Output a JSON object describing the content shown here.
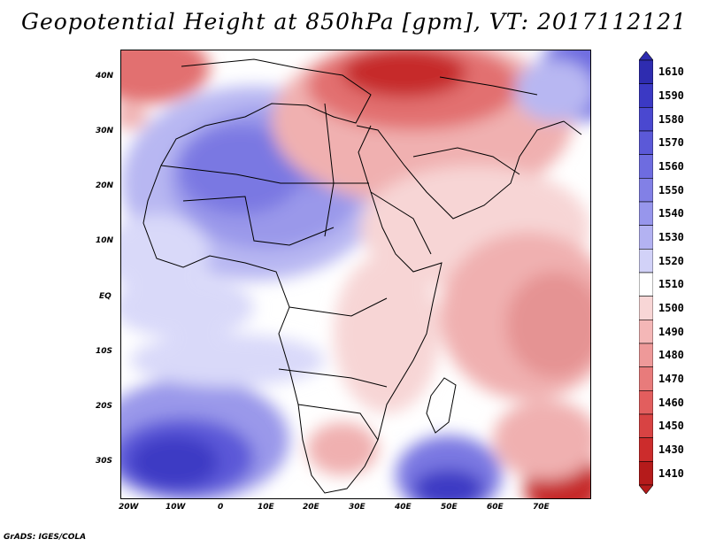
{
  "title": "Geopotential Height at 850hPa [gpm], VT: 2017112121",
  "credit": "GrADS: IGES/COLA",
  "lat_labels": [
    "40N",
    "30N",
    "20N",
    "10N",
    "EQ",
    "10S",
    "20S",
    "30S"
  ],
  "lon_labels": [
    "20W",
    "10W",
    "0",
    "10E",
    "20E",
    "30E",
    "40E",
    "50E",
    "60E",
    "70E"
  ],
  "colorbar": {
    "levels": [
      "1610",
      "1590",
      "1580",
      "1570",
      "1560",
      "1550",
      "1540",
      "1530",
      "1520",
      "1510",
      "1500",
      "1490",
      "1480",
      "1470",
      "1460",
      "1450",
      "1430",
      "1410"
    ],
    "colors": [
      "#2e2cb0",
      "#3b39c4",
      "#4a48d0",
      "#5b59d8",
      "#6e6ce0",
      "#8280e6",
      "#9796ec",
      "#b3b2f2",
      "#d2d2f8",
      "#ffffff",
      "#f8d6d6",
      "#f4b7b7",
      "#ee9999",
      "#e87b7b",
      "#e25e5e",
      "#d84343",
      "#cc2c2c",
      "#b51b1b"
    ]
  },
  "field_colors": {
    "deep_blue": "#3d3bc4",
    "mid_blue": "#7a78e2",
    "light_blue": "#b8b7f2",
    "pale_blue": "#d9d9f9",
    "white": "#ffffff",
    "pale_red": "#f7d5d5",
    "light_red": "#f0b0b0",
    "mid_red": "#e27070",
    "deep_red": "#c62a2a"
  }
}
